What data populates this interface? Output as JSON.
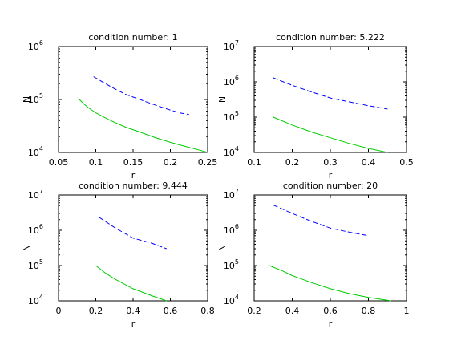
{
  "figure": {
    "background": "#ffffff"
  },
  "chart_data": [
    {
      "type": "line",
      "title": "condition number: 1",
      "xlabel": "r",
      "ylabel": "N",
      "xlim": [
        0.05,
        0.25
      ],
      "ylim": [
        10000,
        1000000
      ],
      "yscale": "log",
      "grid": false,
      "xticks": [
        "0.05",
        "0.1",
        "0.15",
        "0.2",
        "0.25"
      ],
      "yticks": [
        {
          "base": "10",
          "exp": "4",
          "value": 10000
        },
        {
          "base": "10",
          "exp": "5",
          "value": 100000
        },
        {
          "base": "10",
          "exp": "6",
          "value": 1000000
        }
      ],
      "series": [
        {
          "color": "#0000ff",
          "style": "dashed",
          "x": [
            0.097,
            0.11,
            0.125,
            0.14,
            0.155,
            0.17,
            0.185,
            0.2,
            0.215,
            0.225
          ],
          "y": [
            270000,
            210000,
            160000,
            125000,
            105000,
            88000,
            74000,
            63000,
            55000,
            52000
          ]
        },
        {
          "color": "#00cc00",
          "style": "solid",
          "x": [
            0.078,
            0.085,
            0.09,
            0.1,
            0.12,
            0.14,
            0.16,
            0.18,
            0.2,
            0.22,
            0.24,
            0.25
          ],
          "y": [
            100000,
            80000,
            70000,
            56000,
            40000,
            30000,
            24000,
            19000,
            15500,
            13000,
            11000,
            10000
          ]
        }
      ]
    },
    {
      "type": "line",
      "title": "condition number: 5.222",
      "xlabel": "r",
      "ylabel": "N",
      "xlim": [
        0.1,
        0.5
      ],
      "ylim": [
        10000,
        10000000
      ],
      "yscale": "log",
      "grid": false,
      "xticks": [
        "0.1",
        "0.2",
        "0.3",
        "0.4",
        "0.5"
      ],
      "yticks": [
        {
          "base": "10",
          "exp": "4",
          "value": 10000
        },
        {
          "base": "10",
          "exp": "5",
          "value": 100000
        },
        {
          "base": "10",
          "exp": "6",
          "value": 1000000
        },
        {
          "base": "10",
          "exp": "7",
          "value": 10000000
        }
      ],
      "series": [
        {
          "color": "#0000ff",
          "style": "dashed",
          "x": [
            0.15,
            0.2,
            0.25,
            0.3,
            0.35,
            0.4,
            0.45
          ],
          "y": [
            1300000,
            800000,
            520000,
            350000,
            270000,
            210000,
            170000
          ]
        },
        {
          "color": "#00cc00",
          "style": "solid",
          "x": [
            0.15,
            0.2,
            0.25,
            0.3,
            0.35,
            0.4,
            0.45
          ],
          "y": [
            100000,
            60000,
            38000,
            26000,
            18000,
            13000,
            10000
          ]
        }
      ]
    },
    {
      "type": "line",
      "title": "condition number: 9.444",
      "xlabel": "r",
      "ylabel": "N",
      "xlim": [
        0,
        0.8
      ],
      "ylim": [
        10000,
        10000000
      ],
      "yscale": "log",
      "grid": false,
      "xticks": [
        "0",
        "0.2",
        "0.4",
        "0.6",
        "0.8"
      ],
      "yticks": [
        {
          "base": "10",
          "exp": "4",
          "value": 10000
        },
        {
          "base": "10",
          "exp": "5",
          "value": 100000
        },
        {
          "base": "10",
          "exp": "6",
          "value": 1000000
        },
        {
          "base": "10",
          "exp": "7",
          "value": 10000000
        }
      ],
      "series": [
        {
          "color": "#0000ff",
          "style": "dashed",
          "x": [
            0.22,
            0.3,
            0.4,
            0.5,
            0.58
          ],
          "y": [
            2300000,
            1200000,
            600000,
            430000,
            300000
          ]
        },
        {
          "color": "#00cc00",
          "style": "solid",
          "x": [
            0.2,
            0.25,
            0.3,
            0.4,
            0.5,
            0.58
          ],
          "y": [
            100000,
            62000,
            42000,
            22000,
            14000,
            10000
          ]
        }
      ]
    },
    {
      "type": "line",
      "title": "condition number: 20",
      "xlabel": "r",
      "ylabel": "N",
      "xlim": [
        0.2,
        1
      ],
      "ylim": [
        10000,
        10000000
      ],
      "yscale": "log",
      "grid": false,
      "xticks": [
        "0.2",
        "0.4",
        "0.6",
        "0.8",
        "1"
      ],
      "yticks": [
        {
          "base": "10",
          "exp": "4",
          "value": 10000
        },
        {
          "base": "10",
          "exp": "5",
          "value": 100000
        },
        {
          "base": "10",
          "exp": "6",
          "value": 1000000
        },
        {
          "base": "10",
          "exp": "7",
          "value": 10000000
        }
      ],
      "series": [
        {
          "color": "#0000ff",
          "style": "dashed",
          "x": [
            0.3,
            0.4,
            0.5,
            0.6,
            0.7,
            0.8
          ],
          "y": [
            5200000,
            3000000,
            1800000,
            1150000,
            880000,
            700000
          ]
        },
        {
          "color": "#00cc00",
          "style": "solid",
          "x": [
            0.28,
            0.35,
            0.4,
            0.5,
            0.6,
            0.7,
            0.8,
            0.92
          ],
          "y": [
            100000,
            70000,
            52000,
            33000,
            22000,
            16000,
            12500,
            10000
          ]
        }
      ]
    }
  ]
}
